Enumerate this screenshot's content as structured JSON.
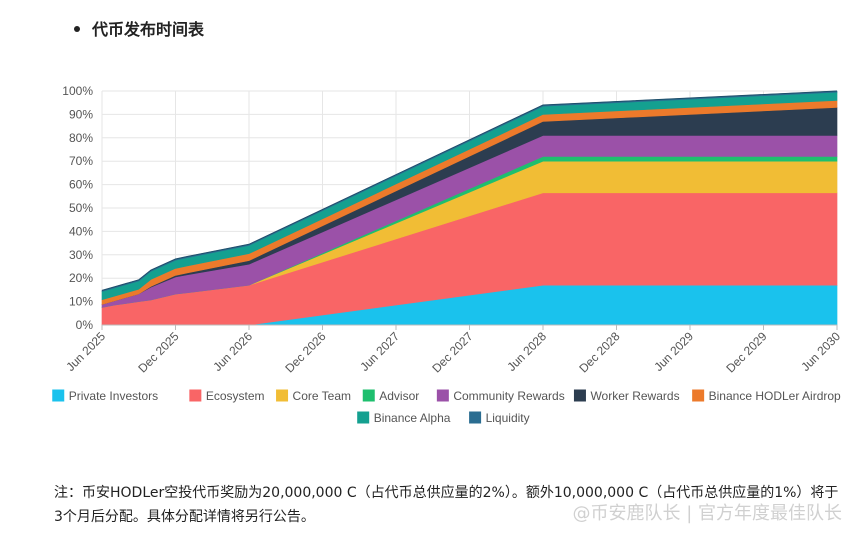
{
  "heading": "代币发布时间表",
  "note": "注：币安HODLer空投代币奖励为20,000,000 C（占代币总供应量的2%）。额外10,000,000 C（占代币总供应量的1%）将于3个月后分配。具体分配详情将另行公告。",
  "watermark": "@币安鹿队长 | 官方年度最佳队长",
  "chart_data": {
    "type": "area",
    "stacked": true,
    "x_unit": "months since Jun 2025",
    "x": [
      0,
      1,
      3,
      4,
      6,
      7,
      12,
      36,
      60
    ],
    "x_tick_labels": [
      "Jun 2025",
      "Dec 2025",
      "Jun 2026",
      "Dec 2026",
      "Jun 2027",
      "Dec 2027",
      "Jun 2028",
      "Dec 2028",
      "Jun 2029",
      "Dec 2029",
      "Jun 2030"
    ],
    "y_tick_labels": [
      "0%",
      "10%",
      "20%",
      "30%",
      "40%",
      "50%",
      "60%",
      "70%",
      "80%",
      "90%",
      "100%"
    ],
    "ylim": [
      0,
      100
    ],
    "grid": true,
    "legend_position": "bottom",
    "series": [
      {
        "name": "Private Investors",
        "color": "#1ac2ed",
        "values": [
          0,
          0,
          0,
          0,
          0,
          0,
          0,
          17,
          17
        ]
      },
      {
        "name": "Ecosystem",
        "color": "#f96566",
        "values": [
          7.5,
          8.5,
          10,
          10.7,
          13.2,
          13.8,
          17,
          39.5,
          39.5
        ]
      },
      {
        "name": "Core Team",
        "color": "#f1bd35",
        "values": [
          0,
          0,
          0,
          0,
          0,
          0,
          0,
          13.5,
          13.5
        ]
      },
      {
        "name": "Advisor",
        "color": "#1ebf6e",
        "values": [
          0,
          0,
          0,
          0,
          0,
          0,
          0,
          2,
          2
        ]
      },
      {
        "name": "Community Rewards",
        "color": "#9b51a8",
        "values": [
          1.3,
          1.8,
          3.3,
          5.5,
          7.3,
          7.7,
          9,
          9,
          9
        ]
      },
      {
        "name": "Worker Rewards",
        "color": "#2c3d50",
        "values": [
          0,
          0,
          0,
          0.3,
          0.7,
          0.8,
          1.5,
          6,
          12
        ]
      },
      {
        "name": "Binance HODLer Airdrop",
        "color": "#ec7a2b",
        "values": [
          2,
          2,
          2,
          3,
          3,
          3,
          3,
          3,
          3
        ]
      },
      {
        "name": "Binance Alpha",
        "color": "#14a090",
        "values": [
          3.5,
          3.5,
          3.5,
          3.5,
          3.5,
          3.5,
          3.5,
          3.5,
          3.5
        ]
      },
      {
        "name": "Liquidity",
        "color": "#2a6d91",
        "values": [
          0.5,
          0.5,
          0.5,
          0.5,
          0.5,
          0.5,
          0.5,
          0.5,
          0.5
        ]
      }
    ]
  }
}
